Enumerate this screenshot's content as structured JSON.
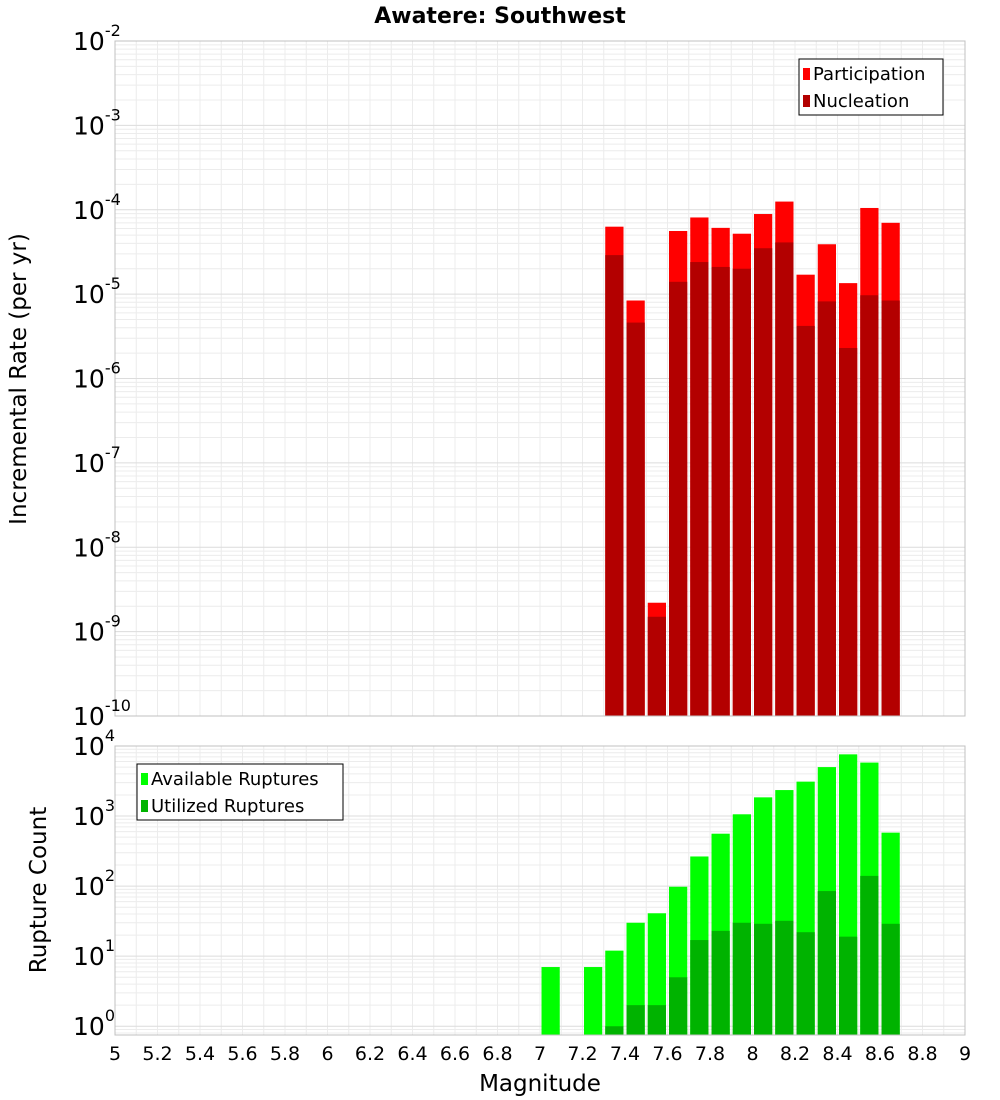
{
  "chart_data": [
    {
      "type": "bar",
      "title": "Awatere: Southwest",
      "ylabel": "Incremental Rate (per yr)",
      "xlabel": "",
      "xlim": [
        5,
        9
      ],
      "ylim": [
        1e-10,
        0.01
      ],
      "yscale": "log",
      "y_tick_exponents": [
        -10,
        -9,
        -8,
        -7,
        -6,
        -5,
        -4,
        -3,
        -2
      ],
      "grid": true,
      "legend_position": "top-right",
      "bin_width": 0.1,
      "bin_centers": [
        7.35,
        7.45,
        7.55,
        7.65,
        7.75,
        7.85,
        7.95,
        8.05,
        8.15,
        8.25,
        8.35,
        8.45,
        8.55,
        8.65
      ],
      "series": [
        {
          "name": "Participation",
          "color": "#ff0000",
          "values": [
            6.3e-05,
            8.4e-06,
            2.2e-09,
            5.6e-05,
            8.1e-05,
            6.1e-05,
            5.2e-05,
            8.9e-05,
            0.000125,
            1.7e-05,
            3.9e-05,
            1.35e-05,
            0.000105,
            7e-05
          ]
        },
        {
          "name": "Nucleation",
          "color": "#b30000",
          "values": [
            2.9e-05,
            4.6e-06,
            1.5e-09,
            1.4e-05,
            2.4e-05,
            2.1e-05,
            2e-05,
            3.5e-05,
            4.1e-05,
            4.2e-06,
            8.2e-06,
            2.3e-06,
            9.7e-06,
            8.4e-06
          ]
        }
      ]
    },
    {
      "type": "bar",
      "title": "",
      "ylabel": "Rupture Count",
      "xlabel": "Magnitude",
      "xlim": [
        5,
        9
      ],
      "ylim": [
        0.75,
        10000
      ],
      "yscale": "log",
      "y_tick_exponents": [
        0,
        1,
        2,
        3,
        4
      ],
      "x_ticks": [
        "5",
        "5.2",
        "5.4",
        "5.6",
        "5.8",
        "6",
        "6.2",
        "6.4",
        "6.6",
        "6.8",
        "7",
        "7.2",
        "7.4",
        "7.6",
        "7.8",
        "8",
        "8.2",
        "8.4",
        "8.6",
        "8.8",
        "9"
      ],
      "grid": true,
      "legend_position": "top-left",
      "bin_width": 0.1,
      "bin_centers": [
        7.05,
        7.25,
        7.35,
        7.45,
        7.55,
        7.65,
        7.75,
        7.85,
        7.95,
        8.05,
        8.15,
        8.25,
        8.35,
        8.45,
        8.55,
        8.65
      ],
      "series": [
        {
          "name": "Available Ruptures",
          "color": "#00ff00",
          "values": [
            7,
            7,
            12,
            30,
            41,
            98,
            265,
            560,
            1060,
            1850,
            2350,
            3100,
            5000,
            7600,
            5800,
            580
          ]
        },
        {
          "name": "Utilized Ruptures",
          "color": "#00b300",
          "values": [
            0,
            0,
            1,
            2,
            2,
            5,
            17,
            23,
            30,
            29,
            32,
            22,
            85,
            19,
            140,
            29
          ]
        }
      ]
    }
  ]
}
